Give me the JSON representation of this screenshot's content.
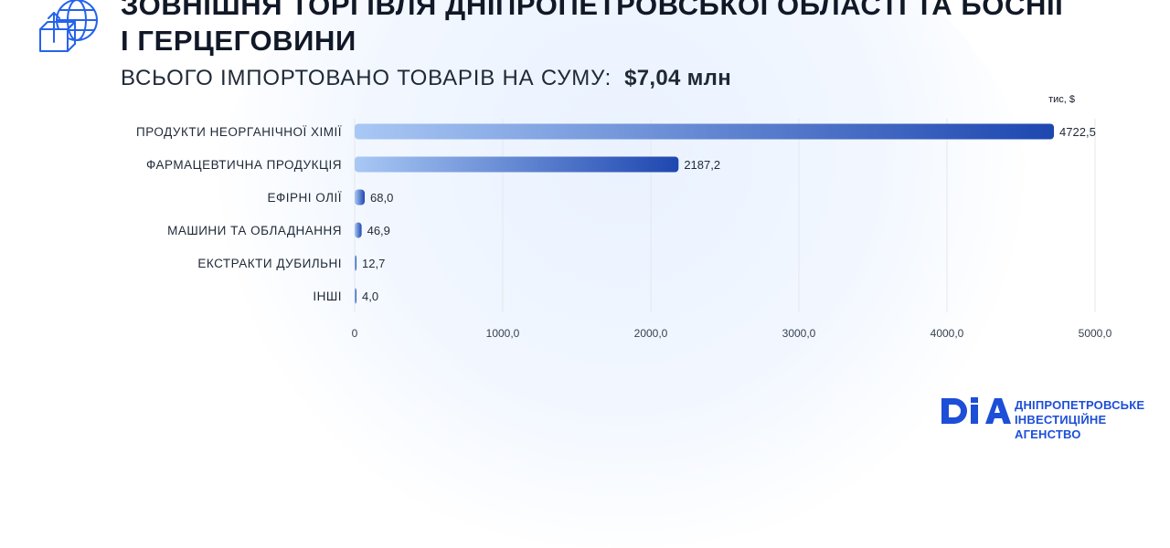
{
  "header": {
    "title_line1": "ЗОВНІШНЯ ТОРГІВЛЯ ДНІПРОПЕТРОВСЬКОЇ ОБЛАСТІ ТА БОСНІЇ",
    "title_line2": "І ГЕРЦЕГОВИНИ",
    "subtitle_label": "ВСЬОГО ІМПОРТОВАНО ТОВАРІВ НА СУМУ:",
    "subtitle_total": "$7,04 млн",
    "icon": "globe-box-icon"
  },
  "colors": {
    "bar_start": "#a9c8f5",
    "bar_end": "#1e47b0",
    "accent": "#1d4ed8",
    "text": "#1f2937",
    "grid": "#e5e7eb"
  },
  "chart_data": {
    "type": "bar",
    "orientation": "horizontal",
    "unit_label": "тис, $",
    "categories": [
      "ПРОДУКТИ НЕОРГАНІЧНОЇ ХІМІЇ",
      "ФАРМАЦЕВТИЧНА ПРОДУКЦІЯ",
      "ЕФІРНІ ОЛІЇ",
      "МАШИНИ ТА ОБЛАДНАННЯ",
      "ЕКСТРАКТИ ДУБИЛЬНІ",
      "ІНШІ"
    ],
    "values": [
      4722.5,
      2187.2,
      68.0,
      46.9,
      12.7,
      4.0
    ],
    "value_labels": [
      "4722,5",
      "2187,2",
      "68,0",
      "46,9",
      "12,7",
      "4,0"
    ],
    "xlim": [
      0,
      5000
    ],
    "x_ticks": [
      0,
      1000,
      2000,
      3000,
      4000,
      5000
    ],
    "x_tick_labels": [
      "0",
      "1000,0",
      "2000,0",
      "3000,0",
      "4000,0",
      "5000,0"
    ],
    "grid": true,
    "legend": "none"
  },
  "logo": {
    "mark": "DIA",
    "line1": "ДНІПРОПЕТРОВСЬКЕ",
    "line2": "ІНВЕСТИЦІЙНЕ АГЕНСТВО"
  }
}
